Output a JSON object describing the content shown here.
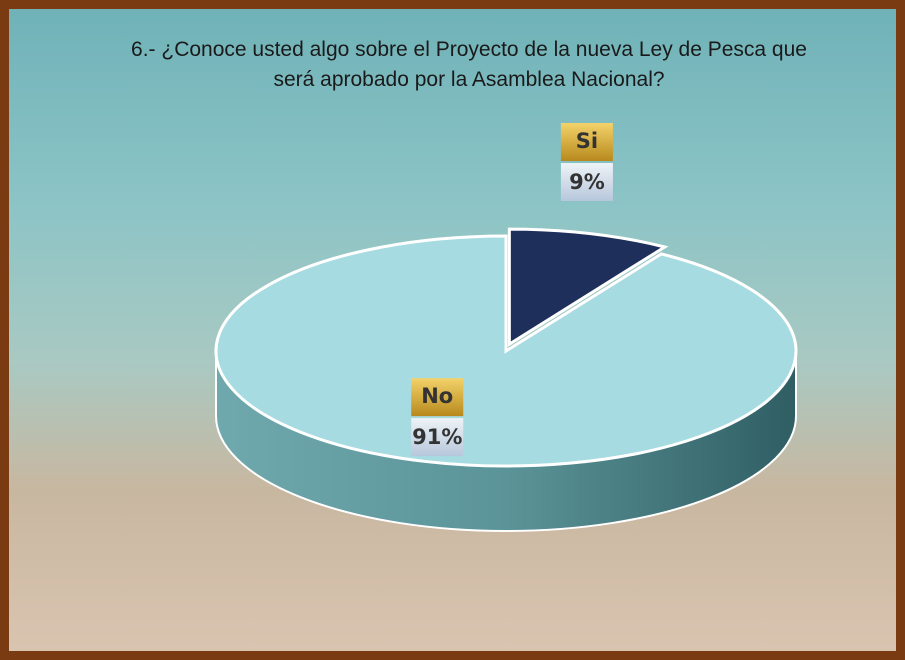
{
  "chart_data": {
    "type": "pie",
    "title": "6.- ¿Conoce usted algo sobre el Proyecto de la nueva Ley de Pesca que será aprobado por la Asamblea Nacional?",
    "categories": [
      "Si",
      "No"
    ],
    "values": [
      9,
      91
    ],
    "value_labels": [
      "9%",
      "91%"
    ],
    "colors": [
      "#1f2f5c",
      "#a6dbe1"
    ]
  }
}
